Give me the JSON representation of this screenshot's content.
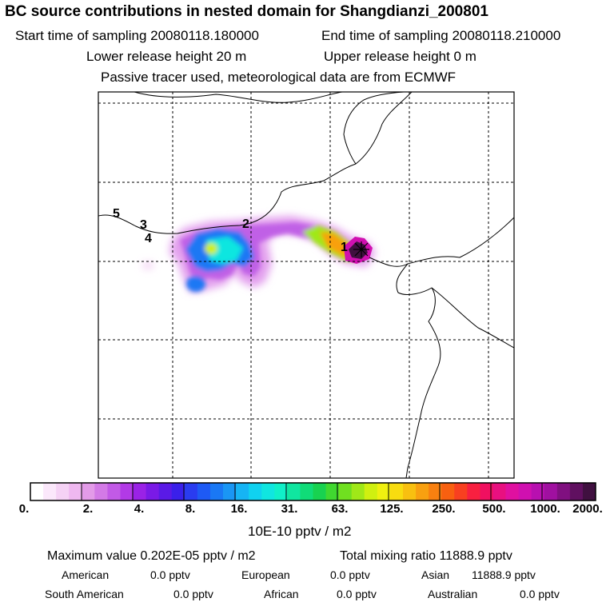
{
  "header": {
    "title": "BC  source contributions in nested domain for Shangdianzi_200801",
    "start_label": "Start time of sampling 20080118.180000",
    "end_label": "End time of sampling 20080118.210000",
    "lower_label": "Lower release height   20 m",
    "upper_label": "Upper release height    0 m",
    "tracer_note": "Passive tracer used, meteorological data are from ECMWF"
  },
  "map": {
    "markers": [
      "1",
      "2",
      "3",
      "4",
      "5"
    ]
  },
  "colorbar": {
    "tick_labels": [
      "0.",
      "2.",
      "4.",
      "8.",
      "16.",
      "31.",
      "63.",
      "125.",
      "250.",
      "500.",
      "1000.",
      "2000."
    ],
    "unit": "10E-10 pptv / m2",
    "colors": [
      "#ffffff",
      "#fbe8fb",
      "#f5d2f5",
      "#efb8f0",
      "#e39be8",
      "#d37ae6",
      "#c25ae6",
      "#b23ae6",
      "#9a22e6",
      "#7a1ae6",
      "#5a1ae6",
      "#3a20ea",
      "#2a3cf0",
      "#1e5af4",
      "#1a78f4",
      "#1a96f4",
      "#16b4f4",
      "#10d2f0",
      "#10e6e0",
      "#10f0c8",
      "#10e6a0",
      "#10dc78",
      "#18d250",
      "#40d830",
      "#70e020",
      "#a0e818",
      "#d0f010",
      "#f0f010",
      "#f8dc10",
      "#f8c010",
      "#f8a010",
      "#f88010",
      "#f86010",
      "#f84020",
      "#f82040",
      "#f01060",
      "#e81080",
      "#e010a0",
      "#d010b0",
      "#b810b0",
      "#a010a0",
      "#801080",
      "#601060",
      "#401040"
    ]
  },
  "stats": {
    "max_label": "Maximum value  0.202E-05 pptv / m2",
    "total_label": "Total mixing ratio    11888.9 pptv",
    "regions": [
      {
        "name": "American",
        "value": "0.0 pptv"
      },
      {
        "name": "European",
        "value": "0.0 pptv"
      },
      {
        "name": "Asian",
        "value": "11888.9 pptv"
      },
      {
        "name": "South American",
        "value": "0.0 pptv"
      },
      {
        "name": "African",
        "value": "0.0 pptv"
      },
      {
        "name": "Australian",
        "value": "0.0 pptv"
      }
    ]
  }
}
